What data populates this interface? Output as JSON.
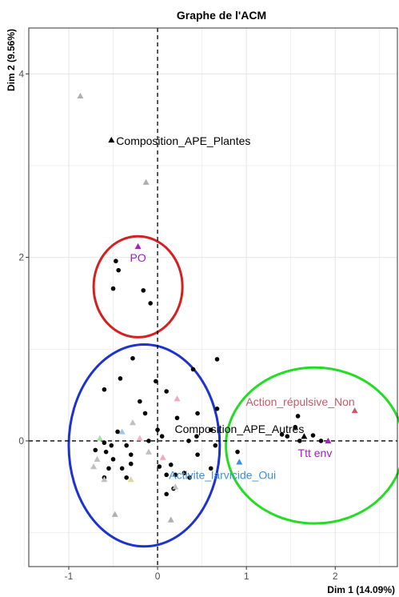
{
  "chart_data": {
    "type": "scatter",
    "title": "Graphe de l'ACM",
    "xlabel": "Dim 1 (14.09%)",
    "ylabel": "Dim 2 (9.56%)",
    "xlim": [
      -1.45,
      2.7
    ],
    "ylim": [
      -1.37,
      4.5
    ],
    "xticks": [
      -1,
      0,
      1,
      2
    ],
    "yticks": [
      0,
      2,
      4
    ],
    "grid": true,
    "reference_lines": {
      "x": 0,
      "y": 0,
      "style": "dashed"
    },
    "series": [
      {
        "marker": "circle",
        "color": "#000000",
        "points": [
          [
            -0.47,
            1.96
          ],
          [
            -0.44,
            1.86
          ],
          [
            -0.5,
            1.66
          ],
          [
            -0.16,
            1.64
          ],
          [
            -0.08,
            1.5
          ],
          [
            -0.28,
            0.9
          ],
          [
            0.4,
            0.78
          ],
          [
            0.67,
            0.89
          ],
          [
            -0.42,
            0.68
          ],
          [
            -0.6,
            0.56
          ],
          [
            -0.02,
            0.65
          ],
          [
            0.1,
            0.54
          ],
          [
            -0.2,
            0.43
          ],
          [
            0.67,
            0.35
          ],
          [
            -0.14,
            0.3
          ],
          [
            0.22,
            0.25
          ],
          [
            0.45,
            0.3
          ],
          [
            0.0,
            0.12
          ],
          [
            -0.45,
            0.1
          ],
          [
            0.6,
            0.12
          ],
          [
            -0.6,
            -0.02
          ],
          [
            -0.52,
            -0.05
          ],
          [
            -0.35,
            -0.05
          ],
          [
            -0.1,
            0.0
          ],
          [
            0.35,
            0.0
          ],
          [
            0.44,
            0.05
          ],
          [
            0.05,
            0.05
          ],
          [
            -0.7,
            -0.1
          ],
          [
            -0.58,
            -0.12
          ],
          [
            -0.5,
            -0.2
          ],
          [
            -0.3,
            -0.15
          ],
          [
            0.45,
            -0.15
          ],
          [
            -0.55,
            -0.3
          ],
          [
            -0.4,
            -0.3
          ],
          [
            0.15,
            -0.26
          ],
          [
            0.3,
            -0.35
          ],
          [
            0.65,
            -0.05
          ],
          [
            -0.6,
            -0.4
          ],
          [
            -0.35,
            -0.4
          ],
          [
            -0.3,
            -0.25
          ],
          [
            0.02,
            -0.28
          ],
          [
            0.1,
            -0.37
          ],
          [
            0.2,
            -0.37
          ],
          [
            0.36,
            -0.4
          ],
          [
            0.18,
            -0.52
          ],
          [
            0.1,
            -0.58
          ],
          [
            0.6,
            -0.3
          ],
          [
            0.9,
            -0.12
          ],
          [
            1.4,
            0.07
          ],
          [
            1.46,
            0.05
          ],
          [
            1.58,
            0.27
          ],
          [
            1.75,
            0.06
          ],
          [
            1.84,
            0.0
          ],
          [
            1.55,
            0.15
          ],
          [
            1.6,
            0.0
          ]
        ]
      },
      {
        "marker": "triangle",
        "points": [
          {
            "x": -0.52,
            "y": 3.28,
            "color": "#000000"
          },
          {
            "x": -0.87,
            "y": 3.76,
            "color": "#b0b0b0"
          },
          {
            "x": -0.13,
            "y": 2.82,
            "color": "#b0b0b0"
          },
          {
            "x": -0.22,
            "y": 2.12,
            "color": "#a020c0"
          },
          {
            "x": 2.22,
            "y": 0.33,
            "color": "#c55a6a"
          },
          {
            "x": 1.92,
            "y": 0.0,
            "color": "#a020c0"
          },
          {
            "x": 0.92,
            "y": -0.23,
            "color": "#3d8fd8"
          },
          {
            "x": 1.65,
            "y": 0.05,
            "color": "#000000"
          },
          {
            "x": 0.22,
            "y": 0.46,
            "color": "#f4a6c0"
          },
          {
            "x": -0.28,
            "y": 0.2,
            "color": "#c0c0c0"
          },
          {
            "x": -0.65,
            "y": 0.03,
            "color": "#a6e0a6"
          },
          {
            "x": -0.2,
            "y": 0.03,
            "color": "#f4b6c6"
          },
          {
            "x": -0.4,
            "y": 0.1,
            "color": "#9fc5e8"
          },
          {
            "x": -0.68,
            "y": -0.2,
            "color": "#c0c0c0"
          },
          {
            "x": -0.72,
            "y": -0.28,
            "color": "#c0c0c0"
          },
          {
            "x": -0.6,
            "y": -0.42,
            "color": "#c0c0c0"
          },
          {
            "x": -0.3,
            "y": -0.42,
            "color": "#d8d8a0"
          },
          {
            "x": -0.48,
            "y": -0.8,
            "color": "#b0b0b0"
          },
          {
            "x": 0.15,
            "y": -0.86,
            "color": "#b0b0b0"
          },
          {
            "x": 0.2,
            "y": -0.5,
            "color": "#c0c0c0"
          },
          {
            "x": 0.06,
            "y": -0.18,
            "color": "#f4a6c0"
          },
          {
            "x": -0.1,
            "y": -0.12,
            "color": "#c0c0c0"
          }
        ]
      }
    ],
    "annotations": [
      {
        "text": "Composition_APE_Plantes",
        "x": -0.52,
        "y": 3.28,
        "color": "#000000"
      },
      {
        "text": "PO",
        "x": -0.22,
        "y": 2.12,
        "color": "#a020c0"
      },
      {
        "text": "Action_répulsive_Non",
        "x": 2.22,
        "y": 0.33,
        "color": "#c55a6a"
      },
      {
        "text": "Composition_APE_Autres",
        "x": 1.65,
        "y": 0.05,
        "color": "#000000"
      },
      {
        "text": "Ttt env",
        "x": 1.92,
        "y": 0.0,
        "color": "#a020c0"
      },
      {
        "text": "Activite_larvicide_Oui",
        "x": 0.92,
        "y": -0.23,
        "color": "#3d8fd8"
      }
    ],
    "ellipses": [
      {
        "cx": -0.22,
        "cy": 1.68,
        "rx": 0.5,
        "ry": 0.55,
        "color": "#d42020"
      },
      {
        "cx": -0.15,
        "cy": -0.05,
        "rx": 0.85,
        "ry": 1.1,
        "color": "#1c33d0"
      },
      {
        "cx": 1.77,
        "cy": -0.05,
        "rx": 1.0,
        "ry": 0.85,
        "color": "#22dd22"
      }
    ],
    "colors": {
      "grid": "#e6e6e6",
      "axis_text": "#4d4d4d",
      "panel_border": "#333333"
    }
  }
}
